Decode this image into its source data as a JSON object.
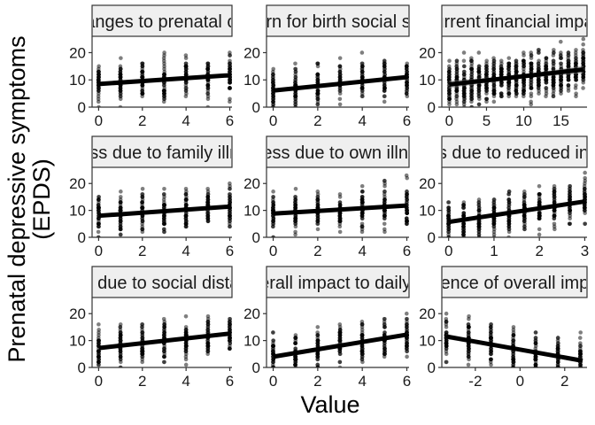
{
  "chart_data": {
    "type": "scatter",
    "xlabel": "Value",
    "ylabel_lines": [
      "Prenatal depressive symptoms",
      "(EPDS)"
    ],
    "ylim": [
      0,
      26
    ],
    "yticks": [
      0,
      10,
      20
    ],
    "grid": false,
    "panels": [
      {
        "strip": "Changes to prenatal care",
        "xlim": [
          -0.3,
          6.1
        ],
        "xticks": [
          0,
          2,
          4,
          6
        ],
        "x_values": [
          0,
          1,
          2,
          3,
          4,
          5,
          6
        ],
        "fit": [
          [
            0,
            8.5
          ],
          [
            6,
            11.7
          ]
        ],
        "band": 0.3
      },
      {
        "strip": "Concern for birth social support",
        "xlim": [
          -0.3,
          6.1
        ],
        "xticks": [
          0,
          2,
          4,
          6
        ],
        "x_values": [
          0,
          1,
          2,
          3,
          4,
          5,
          6
        ],
        "fit": [
          [
            0,
            6.1
          ],
          [
            6,
            11.0
          ]
        ],
        "band": 0.3
      },
      {
        "strip": "Current financial impact",
        "xlim": [
          -1,
          18.5
        ],
        "xticks": [
          0,
          5,
          10,
          15
        ],
        "x_values": [
          0,
          1,
          2,
          3,
          4,
          5,
          6,
          7,
          8,
          9,
          10,
          11,
          12,
          13,
          14,
          15,
          16,
          17,
          18
        ],
        "fit": [
          [
            0,
            8.3
          ],
          [
            18,
            13.8
          ]
        ],
        "band": 0.9
      },
      {
        "strip": "Stress due to family illness",
        "xlim": [
          -0.3,
          6.1
        ],
        "xticks": [
          0,
          2,
          4,
          6
        ],
        "x_values": [
          0,
          1,
          2,
          3,
          4,
          5,
          6
        ],
        "fit": [
          [
            0,
            8.0
          ],
          [
            6,
            11.4
          ]
        ],
        "band": 0.3
      },
      {
        "strip": "Stress due to own illness",
        "xlim": [
          -0.3,
          6.1
        ],
        "xticks": [
          0,
          2,
          4,
          6
        ],
        "x_values": [
          0,
          1,
          2,
          3,
          4,
          5,
          6
        ],
        "fit": [
          [
            0,
            8.8
          ],
          [
            6,
            11.8
          ]
        ],
        "band": 0.3
      },
      {
        "strip": "Stress due to reduced income",
        "xlim": [
          -0.15,
          3.05
        ],
        "xticks": [
          0,
          1,
          2,
          3
        ],
        "x_values": [
          0,
          0.33,
          0.67,
          1,
          1.33,
          1.67,
          2,
          2.33,
          2.67,
          3
        ],
        "fit": [
          [
            0,
            5.7
          ],
          [
            3,
            13.3
          ]
        ],
        "band": 0.4
      },
      {
        "strip": "Stress due to social distancing",
        "xlim": [
          -0.3,
          6.1
        ],
        "xticks": [
          0,
          2,
          4,
          6
        ],
        "x_values": [
          0,
          1,
          2,
          3,
          4,
          5,
          6
        ],
        "fit": [
          [
            0,
            7.2
          ],
          [
            6,
            12.6
          ]
        ],
        "band": 0.3
      },
      {
        "strip": "Overall impact to daily life",
        "xlim": [
          -0.3,
          6.1
        ],
        "xticks": [
          0,
          2,
          4,
          6
        ],
        "x_values": [
          0,
          1,
          2,
          3,
          4,
          5,
          6
        ],
        "fit": [
          [
            0,
            4.0
          ],
          [
            6,
            12.2
          ]
        ],
        "band": 0.4
      },
      {
        "strip": "Valence of overall impact",
        "xlim": [
          -3.5,
          3.0
        ],
        "xticks": [
          -2,
          0,
          2
        ],
        "x_values": [
          -3.3,
          -2.3,
          -1.3,
          -0.3,
          0.7,
          1.7,
          2.7
        ],
        "fit": [
          [
            -3.3,
            11.5
          ],
          [
            2.8,
            2.5
          ]
        ],
        "band": 0.6
      }
    ]
  }
}
